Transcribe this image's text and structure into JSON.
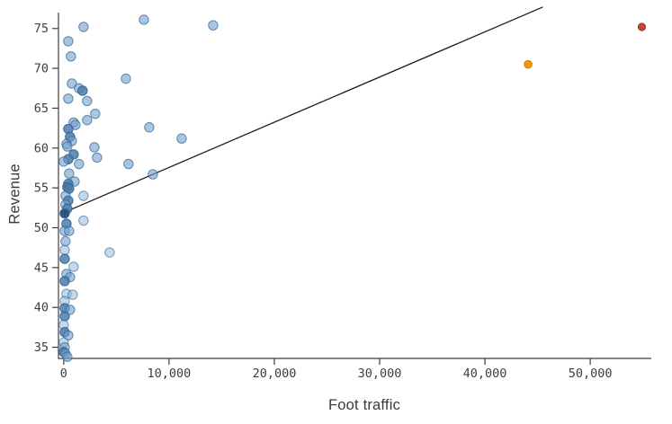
{
  "chart_data": {
    "type": "scatter",
    "title": "",
    "xlabel": "Foot traffic",
    "ylabel": "Revenue",
    "xlim": [
      -500,
      55800
    ],
    "ylim": [
      33.6,
      77.0
    ],
    "x_ticks": [
      0,
      10000,
      20000,
      30000,
      40000,
      50000
    ],
    "x_tick_labels": [
      "0",
      "10,000",
      "20,000",
      "30,000",
      "40,000",
      "50,000"
    ],
    "y_ticks": [
      35,
      40,
      45,
      50,
      55,
      60,
      65,
      70,
      75
    ],
    "y_tick_labels": [
      "35",
      "40",
      "45",
      "50",
      "55",
      "60",
      "65",
      "70",
      "75"
    ],
    "grid": false,
    "legend": "none",
    "trend_line": {
      "x1": 0,
      "y1": 51.9,
      "x2": 45500,
      "y2": 77.7,
      "color": "#1b1b1b",
      "width": 1.3
    },
    "series": [
      {
        "name": "stores",
        "radius": 5.2,
        "edge_color": "#3a6796",
        "shade_fills": {
          "l": "#8db3d6",
          "m": "#6f9fca",
          "d": "#4a7cab",
          "dd": "#27537f"
        },
        "shade_opacity": {
          "l": 0.5,
          "m": 0.6,
          "d": 0.85,
          "dd": 0.97
        },
        "points": [
          [
            7610,
            76.1,
            "m"
          ],
          [
            14190,
            75.4,
            "m"
          ],
          [
            1880,
            75.2,
            "m"
          ],
          [
            430,
            73.4,
            "m"
          ],
          [
            680,
            71.5,
            "m"
          ],
          [
            5900,
            68.7,
            "m"
          ],
          [
            770,
            68.1,
            "m"
          ],
          [
            1450,
            67.5,
            "m"
          ],
          [
            1790,
            67.2,
            "d"
          ],
          [
            430,
            66.2,
            "m"
          ],
          [
            2220,
            65.9,
            "m"
          ],
          [
            2990,
            64.3,
            "m"
          ],
          [
            8120,
            62.6,
            "m"
          ],
          [
            2220,
            63.5,
            "m"
          ],
          [
            940,
            63.2,
            "m"
          ],
          [
            1110,
            62.9,
            "m"
          ],
          [
            430,
            62.4,
            "d"
          ],
          [
            11200,
            61.2,
            "m"
          ],
          [
            600,
            61.4,
            "d"
          ],
          [
            770,
            60.9,
            "m"
          ],
          [
            260,
            60.5,
            "m"
          ],
          [
            340,
            60.2,
            "m"
          ],
          [
            2910,
            60.1,
            "m"
          ],
          [
            940,
            59.2,
            "d"
          ],
          [
            3160,
            58.8,
            "m"
          ],
          [
            6150,
            58.0,
            "m"
          ],
          [
            430,
            58.6,
            "d"
          ],
          [
            0,
            58.3,
            "m"
          ],
          [
            1450,
            58.0,
            "m"
          ],
          [
            8460,
            56.7,
            "m"
          ],
          [
            510,
            56.8,
            "m"
          ],
          [
            1030,
            55.8,
            "m"
          ],
          [
            430,
            55.5,
            "d"
          ],
          [
            340,
            55.1,
            "d"
          ],
          [
            510,
            54.9,
            "d"
          ],
          [
            170,
            54.0,
            "m"
          ],
          [
            1880,
            54.0,
            "l"
          ],
          [
            430,
            53.4,
            "d"
          ],
          [
            170,
            52.9,
            "m"
          ],
          [
            340,
            52.4,
            "d"
          ],
          [
            90,
            51.8,
            "dd"
          ],
          [
            1880,
            50.9,
            "l"
          ],
          [
            260,
            50.5,
            "d"
          ],
          [
            90,
            49.6,
            "m"
          ],
          [
            510,
            49.6,
            "m"
          ],
          [
            170,
            48.3,
            "m"
          ],
          [
            90,
            47.2,
            "l"
          ],
          [
            90,
            46.1,
            "d"
          ],
          [
            4360,
            46.9,
            "l"
          ],
          [
            940,
            45.1,
            "l"
          ],
          [
            260,
            44.2,
            "m"
          ],
          [
            600,
            43.8,
            "m"
          ],
          [
            90,
            43.3,
            "d"
          ],
          [
            260,
            41.7,
            "l"
          ],
          [
            850,
            41.6,
            "l"
          ],
          [
            90,
            40.8,
            "l"
          ],
          [
            90,
            39.9,
            "d"
          ],
          [
            600,
            39.7,
            "m"
          ],
          [
            90,
            38.9,
            "d"
          ],
          [
            0,
            37.8,
            "l"
          ],
          [
            90,
            36.9,
            "d"
          ],
          [
            430,
            36.5,
            "m"
          ],
          [
            0,
            35.6,
            "l"
          ],
          [
            90,
            35.0,
            "m"
          ],
          [
            0,
            34.4,
            "d"
          ],
          [
            170,
            34.2,
            "m"
          ],
          [
            340,
            33.8,
            "m"
          ]
        ]
      },
      {
        "name": "highlight-orange",
        "radius": 4.3,
        "fill": "#f0980f",
        "edge_color": "#cc7d07",
        "opacity": 1,
        "points": [
          [
            44100,
            70.5
          ]
        ]
      },
      {
        "name": "highlight-red",
        "radius": 4.1,
        "fill": "#c2473a",
        "edge_color": "#9c352b",
        "opacity": 1,
        "points": [
          [
            54900,
            75.2
          ]
        ]
      }
    ]
  },
  "style": {
    "background": "#ffffff",
    "axis_color": "#3f3f3f",
    "tick_label_color": "#3d3d3d",
    "axis_title_color": "#363b42"
  }
}
